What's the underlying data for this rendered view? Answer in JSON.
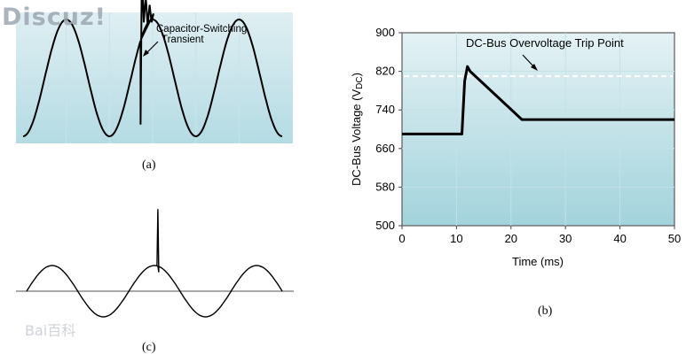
{
  "panel_a": {
    "annotation_line1": "Capacitor-Switching",
    "annotation_line2": "Transient",
    "caption": "(a)"
  },
  "panel_b": {
    "caption": "(b)"
  },
  "panel_c": {
    "caption": "(c)"
  },
  "watermarks": {
    "top_left": "Discuz!",
    "bottom_left": "Bai百科"
  },
  "colors": {
    "plot_bg_top": "#dfeff3",
    "plot_bg_bottom": "#a9d6df",
    "trace": "#000000",
    "trip_line": "#ffffff"
  },
  "chart_data": [
    {
      "type": "line",
      "panel": "a",
      "x": [
        0,
        0.25,
        0.5,
        0.75,
        1.0,
        1.25,
        1.5,
        1.75,
        2.0,
        2.25,
        2.5,
        2.75,
        3.0,
        3.25,
        3.5,
        3.75,
        4.0,
        4.25,
        4.5,
        4.75,
        5.0,
        5.25,
        5.5,
        5.75,
        6.0
      ],
      "series": [
        {
          "values": [
            -1,
            -0.71,
            0,
            0.71,
            1,
            0.71,
            0,
            -0.71,
            -1,
            -0.71,
            0,
            0.71,
            1,
            0.71,
            0,
            -0.71,
            -1,
            -0.71,
            0,
            0.71,
            1,
            0.71,
            0,
            -0.71,
            -1
          ]
        }
      ],
      "transient": {
        "at_x": 2.72,
        "peak": 1.8,
        "trough": -0.8
      },
      "annotation": "Capacitor-Switching Transient"
    },
    {
      "type": "line",
      "panel": "b",
      "x": [
        0,
        11,
        11.5,
        12,
        12.5,
        22,
        50
      ],
      "series": [
        {
          "values": [
            690,
            690,
            800,
            830,
            820,
            720,
            720
          ]
        }
      ],
      "trip_point": 810,
      "trip_label": "DC-Bus Overvoltage Trip Point",
      "xlabel": "Time (ms)",
      "ylabel": "DC-Bus Voltage (V",
      "ylabel_sub": "DC",
      "ylabel_end": ")",
      "xlim": [
        0,
        50
      ],
      "ylim": [
        500,
        900
      ],
      "xticks": [
        "0",
        "10",
        "20",
        "30",
        "40",
        "50"
      ],
      "yticks": [
        "500",
        "580",
        "660",
        "740",
        "820",
        "900"
      ],
      "grid": true
    },
    {
      "type": "line",
      "panel": "c",
      "x": [
        0,
        0.25,
        0.5,
        0.75,
        1.0,
        1.25,
        1.5,
        1.75,
        2.0,
        2.25,
        2.5,
        2.75,
        3.0,
        3.25,
        3.5,
        3.75,
        4.0,
        4.25,
        4.5,
        4.75,
        5.0
      ],
      "series": [
        {
          "values": [
            0,
            0.71,
            1,
            0.71,
            0,
            -0.71,
            -1,
            -0.71,
            0,
            0.71,
            1,
            0.71,
            0,
            -0.71,
            -1,
            -0.71,
            0,
            0.71,
            1,
            0.71,
            0
          ]
        }
      ],
      "spike": {
        "at_x": 2.55,
        "peak": 3.2
      }
    }
  ]
}
